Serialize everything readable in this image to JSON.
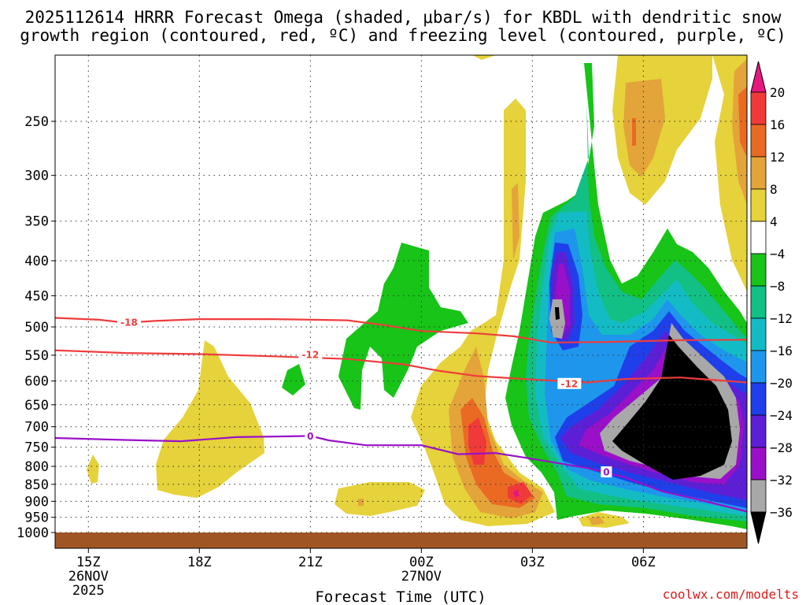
{
  "chart_data": {
    "type": "heatmap",
    "title_lines": [
      "2025112614 HRRR Forecast Omega (shaded, μbar/s) for KBDL with dendritic snow",
      "growth region (contoured, red, ºC) and freezing level (contoured, purple, ºC)"
    ],
    "xlabel": "Forecast Time (UTC)",
    "credit": "coolwx.com/modelts",
    "x_ticks": [
      {
        "hour": 0,
        "lines": [
          "15Z",
          "26NOV",
          "2025"
        ]
      },
      {
        "hour": 3,
        "lines": [
          "18Z"
        ]
      },
      {
        "hour": 6,
        "lines": [
          "21Z"
        ]
      },
      {
        "hour": 9,
        "lines": [
          "00Z",
          "27NOV"
        ]
      },
      {
        "hour": 12,
        "lines": [
          "03Z"
        ]
      },
      {
        "hour": 15,
        "lines": [
          "06Z"
        ]
      }
    ],
    "xlim_hours": [
      -0.9,
      17.8
    ],
    "y_ticks": [
      250,
      300,
      350,
      400,
      450,
      500,
      550,
      600,
      650,
      700,
      750,
      800,
      850,
      900,
      950,
      1000
    ],
    "ylim_hpa": [
      200,
      1000
    ],
    "y_scale": "log",
    "colorbar": {
      "ticks": [
        "20",
        "16",
        "12",
        "8",
        "4",
        "−4",
        "−8",
        "−12",
        "−16",
        "−20",
        "−24",
        "−28",
        "−32",
        "−36"
      ],
      "colors": [
        "#e8177e",
        "#f03a3a",
        "#ea6a23",
        "#e3a43a",
        "#e6d23a",
        "#ffffff",
        "#17c417",
        "#12bf85",
        "#13bcc4",
        "#1e96ec",
        "#1f3fea",
        "#5d1fd6",
        "#9a10c8",
        "#a8a8a8",
        "#000000"
      ]
    },
    "ground_color": "#a05525",
    "series": [
      {
        "label": "-18",
        "color": "#ee3c3c",
        "points": [
          [
            -0.9,
            485
          ],
          [
            0.3,
            488
          ],
          [
            1.0,
            493
          ],
          [
            1.8,
            490
          ],
          [
            3.0,
            487
          ],
          [
            5.0,
            487
          ],
          [
            7.0,
            489
          ],
          [
            8.0,
            497
          ],
          [
            9.0,
            507
          ],
          [
            10.5,
            511
          ],
          [
            11.5,
            516
          ],
          [
            12.5,
            527
          ],
          [
            14.0,
            526
          ],
          [
            16.0,
            523
          ],
          [
            17.8,
            522
          ]
        ],
        "label_at": [
          1.1,
          492
        ]
      },
      {
        "label": "-12",
        "color": "#ee3c3c",
        "points": [
          [
            -0.9,
            541
          ],
          [
            1.0,
            546
          ],
          [
            3.0,
            548
          ],
          [
            5.0,
            552
          ],
          [
            7.0,
            557
          ],
          [
            8.5,
            567
          ],
          [
            9.5,
            580
          ],
          [
            10.5,
            590
          ],
          [
            12.0,
            597
          ],
          [
            13.5,
            603
          ],
          [
            14.5,
            596
          ],
          [
            16.0,
            593
          ],
          [
            17.8,
            603
          ]
        ],
        "label_at": [
          6.0,
          549
        ]
      },
      {
        "label": "-12",
        "color": "#ee3c3c",
        "label_at": [
          13.0,
          605
        ],
        "points": []
      },
      {
        "label": "0",
        "color": "#9a10c8",
        "points": [
          [
            -0.9,
            727
          ],
          [
            1.0,
            732
          ],
          [
            2.5,
            735
          ],
          [
            4.0,
            725
          ],
          [
            6.0,
            722
          ],
          [
            6.5,
            733
          ],
          [
            7.5,
            745
          ],
          [
            9.0,
            745
          ],
          [
            10.0,
            768
          ],
          [
            11.0,
            765
          ],
          [
            12.0,
            780
          ],
          [
            13.5,
            805
          ],
          [
            14.5,
            830
          ],
          [
            15.5,
            870
          ],
          [
            16.5,
            895
          ],
          [
            17.8,
            932
          ]
        ],
        "label_at": [
          6.0,
          722
        ]
      },
      {
        "label": "0",
        "color": "#9a10c8",
        "label_at": [
          14.0,
          815
        ],
        "points": []
      }
    ]
  }
}
